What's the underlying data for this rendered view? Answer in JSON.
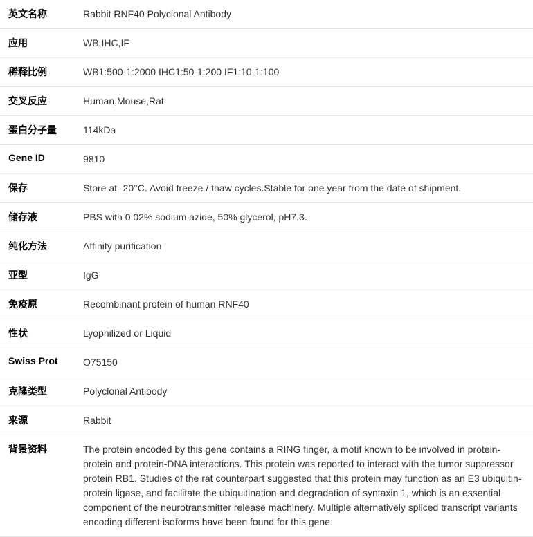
{
  "rows": [
    {
      "label": "英文名称",
      "value": "Rabbit RNF40 Polyclonal Antibody"
    },
    {
      "label": "应用",
      "value": "WB,IHC,IF"
    },
    {
      "label": "稀释比例",
      "value": "WB1:500-1:2000 IHC1:50-1:200 IF1:10-1:100"
    },
    {
      "label": "交叉反应",
      "value": "Human,Mouse,Rat"
    },
    {
      "label": "蛋白分子量",
      "value": "114kDa"
    },
    {
      "label": "Gene ID",
      "value": "9810"
    },
    {
      "label": "保存",
      "value": "Store at -20°C. Avoid freeze / thaw cycles.Stable for one year from the date of shipment."
    },
    {
      "label": "储存液",
      "value": "PBS with 0.02% sodium azide, 50% glycerol, pH7.3."
    },
    {
      "label": "纯化方法",
      "value": "Affinity purification"
    },
    {
      "label": "亚型",
      "value": "IgG"
    },
    {
      "label": "免疫原",
      "value": "Recombinant protein of human RNF40"
    },
    {
      "label": "性状",
      "value": "Lyophilized or Liquid"
    },
    {
      "label": "Swiss Prot",
      "value": "O75150"
    },
    {
      "label": "克隆类型",
      "value": "Polyclonal Antibody"
    },
    {
      "label": "来源",
      "value": "Rabbit"
    },
    {
      "label": "背景资料",
      "value": "The protein encoded by this gene contains a RING finger, a motif known to be involved in protein-protein and protein-DNA interactions. This protein was reported to interact with the tumor suppressor protein RB1. Studies of the rat counterpart suggested that this protein may function as an E3 ubiquitin-protein ligase, and facilitate the ubiquitination and degradation of syntaxin 1, which is an essential component of the neurotransmitter release machinery. Multiple alternatively spliced transcript variants encoding different isoforms have been found for this gene."
    }
  ]
}
